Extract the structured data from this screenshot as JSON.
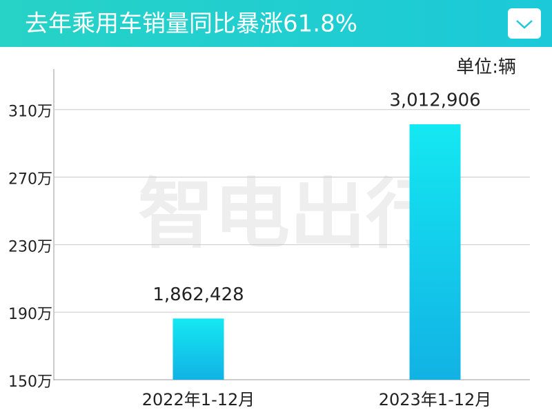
{
  "header": {
    "title": "去年乘用车销量同比暴涨61.8%"
  },
  "chart_data": {
    "type": "bar",
    "unit_label": "单位:辆",
    "watermark": "智电出行",
    "categories": [
      "2022年1-12月",
      "2023年1-12月"
    ],
    "values": [
      1862428,
      3012906
    ],
    "value_labels": [
      "1,862,428",
      "3,012,906"
    ],
    "color": [
      "#14e8f2",
      "#12b2e4"
    ],
    "ylim": [
      1500000,
      3340000
    ],
    "yticks": [
      {
        "value": 1500000,
        "label": "150万"
      },
      {
        "value": 1900000,
        "label": "190万"
      },
      {
        "value": 2300000,
        "label": "230万"
      },
      {
        "value": 2700000,
        "label": "270万"
      },
      {
        "value": 3100000,
        "label": "310万"
      }
    ],
    "grid": true
  }
}
